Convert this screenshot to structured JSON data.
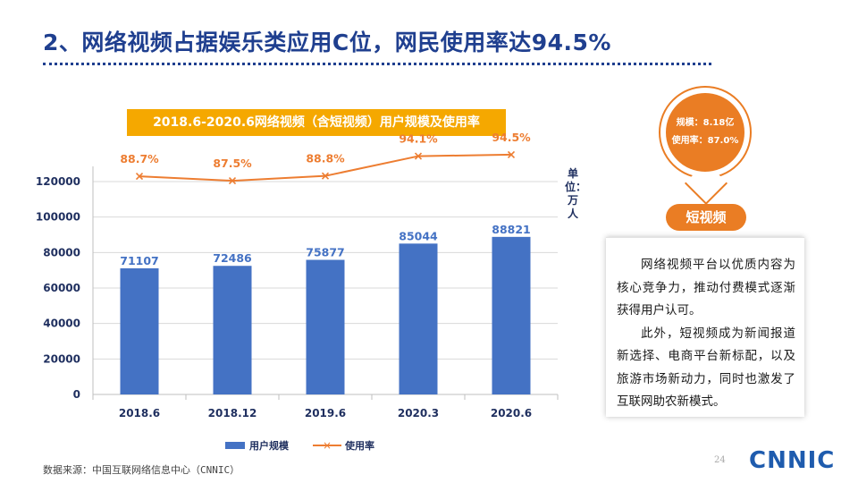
{
  "page": {
    "title": "2、网络视频占据娱乐类应用C位，网民使用率达94.5%",
    "source": "数据来源：中国互联网络信息中心（CNNIC）",
    "page_number": "24",
    "logo_text": "CNNIC"
  },
  "callout": {
    "scale_text": "规模：8.18亿",
    "rate_text": "使用率：87.0%",
    "tag": "短视频",
    "paragraphs": [
      "网络视频平台以优质内容为核心竞争力，推动付费模式逐渐获得用户认可。",
      "此外，短视频成为新闻报道新选择、电商平台新标配，以及旅游市场新动力，同时也激发了互联网助农新模式。"
    ]
  },
  "colors": {
    "bar": "#4472c4",
    "line": "#ed7d31",
    "title": "#1f3f8f",
    "banner": "#f5a800",
    "accent": "#ea7d24"
  },
  "chart_data": {
    "type": "bar",
    "title": "2018.6-2020.6网络视频（含短视频）用户规模及使用率",
    "unit_label": "单位：万人",
    "categories": [
      "2018.6",
      "2018.12",
      "2019.6",
      "2020.3",
      "2020.6"
    ],
    "series": [
      {
        "name": "用户规模",
        "type": "bar",
        "axis": "left",
        "values": [
          71107,
          72486,
          75877,
          85044,
          88821
        ]
      },
      {
        "name": "使用率",
        "type": "line",
        "axis": "right",
        "values": [
          88.7,
          87.5,
          88.8,
          94.1,
          94.5
        ],
        "labels": [
          "88.7%",
          "87.5%",
          "88.8%",
          "94.1%",
          "94.5%"
        ]
      }
    ],
    "ylim": [
      0,
      120000
    ],
    "yticks": [
      0,
      20000,
      40000,
      60000,
      80000,
      100000,
      120000
    ],
    "grid": true,
    "legend": "bottom"
  }
}
